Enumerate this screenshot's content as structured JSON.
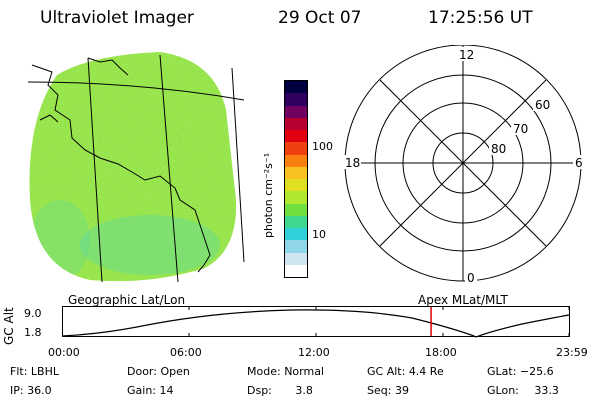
{
  "header": {
    "title": "Ultraviolet Imager",
    "date": "29 Oct 07",
    "time": "17:25:56 UT"
  },
  "colorbar": {
    "unit_label": "photon cm⁻²s⁻¹",
    "ticks": [
      "100",
      "10"
    ],
    "colors": [
      "#ffffff",
      "#cfe6f0",
      "#8fd6e8",
      "#30d0d8",
      "#40d890",
      "#70e040",
      "#b0e830",
      "#e0e020",
      "#f8c020",
      "#f88010",
      "#f04010",
      "#e00010",
      "#b80030",
      "#700060",
      "#300060",
      "#000040"
    ]
  },
  "polar": {
    "mlt_labels": [
      "12",
      "18",
      "6",
      "0"
    ],
    "mlat_labels": [
      "60",
      "70",
      "80"
    ]
  },
  "panel_labels": {
    "left": "Geographic Lat/Lon",
    "right": "Apex MLat/MLT"
  },
  "altitude_plot": {
    "ylabel": "GC Alt",
    "yticks": [
      "9.0",
      "1.8"
    ],
    "xticks": [
      "00:00",
      "06:00",
      "12:00",
      "18:00",
      "23:59"
    ],
    "current_time_fraction": 0.727
  },
  "status": {
    "row1": [
      {
        "key": "Flt:",
        "value": "LBHL"
      },
      {
        "key": "Door:",
        "value": "Open"
      },
      {
        "key": "Mode:",
        "value": "Normal"
      },
      {
        "key": "GC Alt:",
        "value": "4.4 Re"
      },
      {
        "key": "GLat:",
        "value": "−25.6"
      }
    ],
    "row2": [
      {
        "key": "IP:",
        "value": "36.0"
      },
      {
        "key": "Gain:",
        "value": "14"
      },
      {
        "key": "Dsp:",
        "value": "3.8"
      },
      {
        "key": "Seq:",
        "value": "39"
      },
      {
        "key": "GLon:",
        "value": "33.3"
      }
    ]
  }
}
